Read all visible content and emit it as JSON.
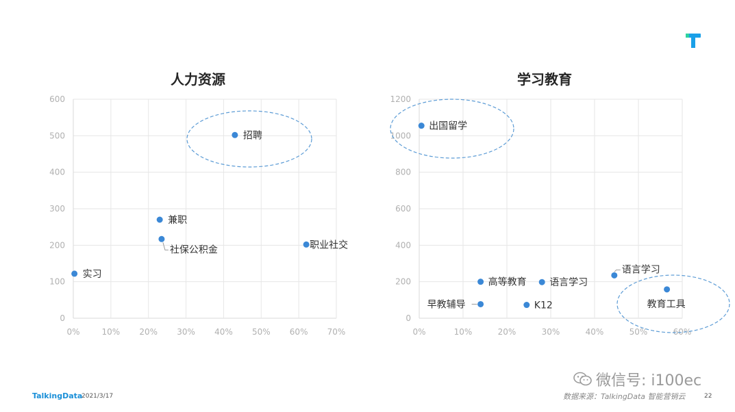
{
  "brand": {
    "logo_icon": "talkingdata-t-logo-icon",
    "footer_brand": "TalkingData",
    "footer_date": "2021/3/17",
    "source_text": "数据来源：TalkingData 智能营销云",
    "page_number": "22",
    "watermark_text": "微信号: i100ec",
    "watermark_icon": "wechat-icon",
    "accent_color": "#1aa0e8",
    "point_color": "#3b88d6"
  },
  "chart_data": [
    {
      "type": "scatter",
      "title": "人力资源",
      "xlim": [
        0,
        70
      ],
      "ylim": [
        0,
        600
      ],
      "x_ticks": [
        "0%",
        "10%",
        "20%",
        "30%",
        "40%",
        "50%",
        "60%",
        "70%"
      ],
      "y_ticks": [
        "0",
        "100",
        "200",
        "300",
        "400",
        "500",
        "600"
      ],
      "grid": true,
      "points": [
        {
          "label": "实习",
          "x": 0.3,
          "y": 122
        },
        {
          "label": "兼职",
          "x": 23,
          "y": 270
        },
        {
          "label": "社保公积金",
          "x": 23.5,
          "y": 217
        },
        {
          "label": "招聘",
          "x": 43,
          "y": 502
        },
        {
          "label": "职业社交",
          "x": 62,
          "y": 202
        }
      ],
      "highlight": [
        "招聘"
      ]
    },
    {
      "type": "scatter",
      "title": "学习教育",
      "xlim": [
        0,
        60
      ],
      "ylim": [
        0,
        1200
      ],
      "x_ticks": [
        "0%",
        "10%",
        "20%",
        "30%",
        "40%",
        "50%",
        "60%"
      ],
      "y_ticks": [
        "0",
        "200",
        "400",
        "600",
        "800",
        "1000",
        "1200"
      ],
      "grid": true,
      "points": [
        {
          "label": "出国留学",
          "x": 0.5,
          "y": 1055
        },
        {
          "label": "高等教育",
          "x": 14,
          "y": 200
        },
        {
          "label": "语言学习",
          "x": 28,
          "y": 198
        },
        {
          "label": "早教辅导",
          "x": 14,
          "y": 77
        },
        {
          "label": "K12",
          "x": 24.5,
          "y": 73
        },
        {
          "label": "语言学习",
          "x": 44.5,
          "y": 235
        },
        {
          "label": "教育工具",
          "x": 56.5,
          "y": 158
        }
      ],
      "highlight": [
        "出国留学",
        "教育工具"
      ]
    }
  ]
}
